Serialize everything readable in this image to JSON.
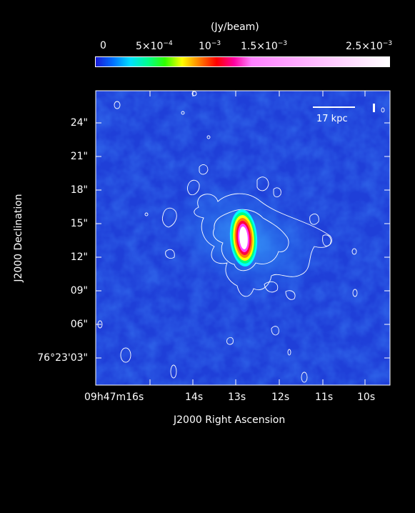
{
  "colorbar": {
    "unit_label": "(Jy/beam)",
    "ticks": [
      {
        "base": "0",
        "exp": ""
      },
      {
        "base": "5×10",
        "exp": "−4"
      },
      {
        "base": "10",
        "exp": "−3"
      },
      {
        "base": "1.5×10",
        "exp": "−3"
      },
      {
        "base": "2.5×10",
        "exp": "−3"
      }
    ],
    "gradient_colors": [
      "#1a1ad8",
      "#0070ff",
      "#00e0ff",
      "#00ff90",
      "#30ff00",
      "#ffff00",
      "#ff8000",
      "#ff0000",
      "#ff00a0",
      "#ff80ff",
      "#ffffff"
    ]
  },
  "map": {
    "background_color": "#1f3fd8",
    "scale_bar_label": "17 kpc",
    "contour_color": "#ffffff",
    "core_colors": [
      "#00ffff",
      "#00ff80",
      "#ffff00",
      "#ff8000",
      "#ff0040",
      "#ff40ff",
      "#ffffff"
    ]
  },
  "axes": {
    "y_label": "J2000 Declination",
    "x_label": "J2000 Right Ascension",
    "y_ticks": [
      {
        "text": "24\""
      },
      {
        "text": "21\""
      },
      {
        "text": "18\""
      },
      {
        "text": "15\""
      },
      {
        "text": "12\""
      },
      {
        "text": "09\""
      },
      {
        "text": "06\""
      },
      {
        "text": "76°23'03\""
      }
    ],
    "x_ticks": [
      {
        "text": "09h47m16s"
      },
      {
        "text": "14s"
      },
      {
        "text": "13s"
      },
      {
        "text": "12s"
      },
      {
        "text": "11s"
      },
      {
        "text": "10s"
      }
    ]
  }
}
